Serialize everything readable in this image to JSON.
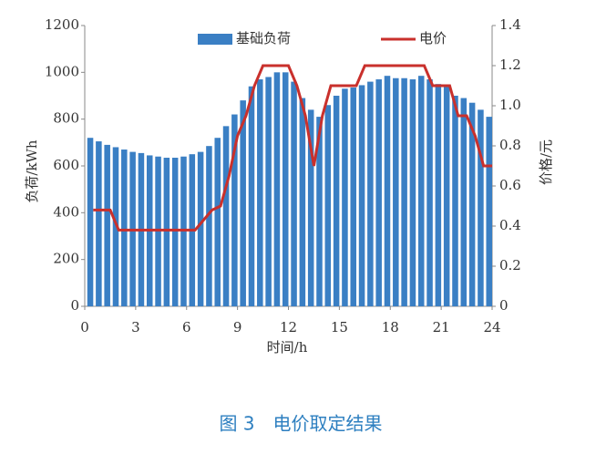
{
  "chart_data": {
    "type": "bar_line",
    "caption": "图 3　电价取定结果",
    "xlabel": "时间/h",
    "ylabel": "负荷/kWh",
    "y2label": "价格/元",
    "xlim": [
      0,
      24
    ],
    "xticks": [
      0,
      3,
      6,
      9,
      12,
      15,
      18,
      21,
      24
    ],
    "ylim": [
      0,
      1200
    ],
    "yticks": [
      0,
      200,
      400,
      600,
      800,
      1000,
      1200
    ],
    "y2lim": [
      0,
      1.4
    ],
    "y2ticks": [
      0,
      0.2,
      0.4,
      0.6,
      0.8,
      {
        "value": 1,
        "label": "1.0"
      },
      1.2,
      1.4
    ],
    "series": [
      {
        "name": "基础负荷",
        "type": "bar",
        "color": "#3a7fc4",
        "x": [
          0.5,
          1,
          1.5,
          2,
          2.5,
          3,
          3.5,
          4,
          4.5,
          5,
          5.5,
          6,
          6.5,
          7,
          7.5,
          8,
          8.5,
          9,
          9.5,
          10,
          10.5,
          11,
          11.5,
          12,
          12.5,
          13,
          13.5,
          14,
          14.5,
          15,
          15.5,
          16,
          16.5,
          17,
          17.5,
          18,
          18.5,
          19,
          19.5,
          20,
          20.5,
          21,
          21.5,
          22,
          22.5,
          23,
          23.5,
          24
        ],
        "values": [
          720,
          705,
          690,
          680,
          670,
          660,
          655,
          645,
          640,
          635,
          635,
          640,
          650,
          660,
          685,
          720,
          770,
          820,
          880,
          940,
          970,
          980,
          1000,
          1000,
          960,
          890,
          840,
          810,
          860,
          900,
          930,
          935,
          945,
          960,
          970,
          985,
          975,
          975,
          970,
          985,
          970,
          950,
          940,
          900,
          890,
          870,
          840,
          810
        ]
      },
      {
        "name": "电价",
        "type": "line",
        "color": "#c9302c",
        "axis": "y2",
        "x": [
          0.5,
          1.5,
          2,
          6.5,
          7,
          7.5,
          8,
          8.5,
          9,
          9.5,
          10,
          10.5,
          12,
          12.5,
          13,
          13.5,
          14,
          14.5,
          16,
          16.5,
          20,
          20.5,
          21.5,
          22,
          22.5,
          23,
          23.5,
          24
        ],
        "values": [
          0.48,
          0.48,
          0.38,
          0.38,
          0.43,
          0.48,
          0.5,
          0.65,
          0.85,
          0.95,
          1.1,
          1.2,
          1.2,
          1.1,
          0.95,
          0.7,
          0.95,
          1.1,
          1.1,
          1.2,
          1.2,
          1.1,
          1.1,
          0.95,
          0.95,
          0.85,
          0.7,
          0.7
        ]
      }
    ]
  }
}
